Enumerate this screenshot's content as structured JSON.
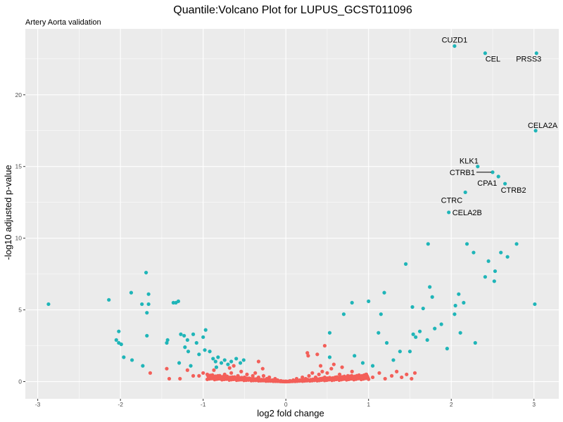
{
  "chart_data": {
    "type": "scatter",
    "title": "Quantile:Volcano Plot for LUPUS_GCST011096",
    "subtitle": "Artery Aorta validation",
    "xlabel": "log2 fold change",
    "ylabel": "-log10 adjusted p-value",
    "xlim": [
      -3.15,
      3.3
    ],
    "ylim": [
      -1.2,
      24.6
    ],
    "x_ticks": [
      -3,
      -2,
      -1,
      0,
      1,
      2,
      3
    ],
    "y_ticks": [
      0,
      5,
      10,
      15,
      20
    ],
    "x_tick_labels": [
      "-3",
      "-2",
      "-1",
      "0",
      "1",
      "2",
      "3"
    ],
    "y_tick_labels": [
      "0",
      "5",
      "10",
      "15",
      "20"
    ],
    "grid": true,
    "legend": "none",
    "colors": {
      "panel": "#ebebeb",
      "grid": "#ffffff",
      "significant": "#1fb5b8",
      "not_significant": "#f35f59"
    },
    "series": [
      {
        "color": "#1fb5b8",
        "points": [
          [
            2.04,
            23.4
          ],
          [
            2.41,
            22.9
          ],
          [
            3.03,
            22.9
          ],
          [
            3.02,
            17.5
          ],
          [
            2.32,
            15.0
          ],
          [
            2.5,
            14.6
          ],
          [
            2.57,
            14.3
          ],
          [
            2.65,
            13.8
          ],
          [
            2.17,
            13.2
          ],
          [
            1.97,
            11.8
          ],
          [
            -2.87,
            5.4
          ],
          [
            -2.14,
            5.7
          ],
          [
            -2.02,
            3.5
          ],
          [
            -2.05,
            2.9
          ],
          [
            -2.02,
            2.7
          ],
          [
            -1.99,
            2.6
          ],
          [
            -1.96,
            1.7
          ],
          [
            -1.87,
            6.2
          ],
          [
            -1.86,
            1.5
          ],
          [
            -1.74,
            5.4
          ],
          [
            -1.69,
            7.6
          ],
          [
            -1.66,
            6.1
          ],
          [
            -1.68,
            4.8
          ],
          [
            -1.68,
            3.2
          ],
          [
            -1.66,
            5.4
          ],
          [
            -1.73,
            1.1
          ],
          [
            -1.43,
            2.9
          ],
          [
            -1.44,
            2.7
          ],
          [
            -1.36,
            5.5
          ],
          [
            -1.33,
            5.5
          ],
          [
            -1.3,
            5.6
          ],
          [
            -1.27,
            3.3
          ],
          [
            -1.23,
            3.2
          ],
          [
            -1.19,
            2.9
          ],
          [
            -1.22,
            2.4
          ],
          [
            -1.18,
            2.1
          ],
          [
            -1.12,
            3.3
          ],
          [
            -1.08,
            2.7
          ],
          [
            -1.05,
            1.9
          ],
          [
            -1.0,
            3.1
          ],
          [
            -0.98,
            2.2
          ],
          [
            -0.92,
            2.1
          ],
          [
            -0.88,
            1.6
          ],
          [
            -0.85,
            1.4
          ],
          [
            -0.82,
            1.7
          ],
          [
            -0.78,
            1.3
          ],
          [
            -0.74,
            1.5
          ],
          [
            -0.7,
            1.2
          ],
          [
            -0.66,
            1.4
          ],
          [
            -0.6,
            1.6
          ],
          [
            -0.55,
            1.3
          ],
          [
            -0.51,
            1.5
          ],
          [
            -0.97,
            3.6
          ],
          [
            -0.84,
            1.0
          ],
          [
            -1.15,
            1.1
          ],
          [
            -1.29,
            1.3
          ],
          [
            0.53,
            3.4
          ],
          [
            0.53,
            1.7
          ],
          [
            0.7,
            4.7
          ],
          [
            0.8,
            5.5
          ],
          [
            0.83,
            1.8
          ],
          [
            0.93,
            1.3
          ],
          [
            1.0,
            5.6
          ],
          [
            1.05,
            1.1
          ],
          [
            1.12,
            3.4
          ],
          [
            1.15,
            4.7
          ],
          [
            1.19,
            6.2
          ],
          [
            1.22,
            2.7
          ],
          [
            1.3,
            1.5
          ],
          [
            1.38,
            2.1
          ],
          [
            1.45,
            8.2
          ],
          [
            1.53,
            5.2
          ],
          [
            1.54,
            3.3
          ],
          [
            1.57,
            3.1
          ],
          [
            1.62,
            3.5
          ],
          [
            1.66,
            5.1
          ],
          [
            1.71,
            2.9
          ],
          [
            1.72,
            9.6
          ],
          [
            1.74,
            6.6
          ],
          [
            1.77,
            5.9
          ],
          [
            1.8,
            3.7
          ],
          [
            1.88,
            4.0
          ],
          [
            1.95,
            2.3
          ],
          [
            2.04,
            4.7
          ],
          [
            2.05,
            5.3
          ],
          [
            2.09,
            6.1
          ],
          [
            2.11,
            3.4
          ],
          [
            2.15,
            5.5
          ],
          [
            2.19,
            9.6
          ],
          [
            2.27,
            9.0
          ],
          [
            2.29,
            2.7
          ],
          [
            2.41,
            7.3
          ],
          [
            2.45,
            8.4
          ],
          [
            2.53,
            7.7
          ],
          [
            2.6,
            9.0
          ],
          [
            2.68,
            8.7
          ],
          [
            2.79,
            9.6
          ],
          [
            2.52,
            7.0
          ],
          [
            3.01,
            5.4
          ],
          [
            1.5,
            2.1
          ]
        ]
      },
      {
        "color": "#f35f59",
        "points": [
          [
            -1.64,
            0.6
          ],
          [
            -1.44,
            0.9
          ],
          [
            -1.41,
            0.2
          ],
          [
            -1.28,
            0.2
          ],
          [
            -1.19,
            0.8
          ],
          [
            -1.12,
            0.4
          ],
          [
            -1.05,
            0.4
          ],
          [
            -1.0,
            0.6
          ],
          [
            -0.95,
            0.5
          ],
          [
            -0.9,
            0.3
          ],
          [
            -0.87,
            0.8
          ],
          [
            -0.82,
            0.4
          ],
          [
            -0.78,
            0.2
          ],
          [
            -0.74,
            0.5
          ],
          [
            -0.7,
            0.3
          ],
          [
            -0.66,
            0.6
          ],
          [
            -0.62,
            0.2
          ],
          [
            -0.58,
            0.4
          ],
          [
            -0.54,
            0.7
          ],
          [
            -0.5,
            0.3
          ],
          [
            -0.47,
            0.5
          ],
          [
            -0.43,
            0.2
          ],
          [
            -0.4,
            0.4
          ],
          [
            -0.37,
            0.6
          ],
          [
            -0.33,
            0.3
          ],
          [
            -0.3,
            0.1
          ],
          [
            -0.27,
            0.4
          ],
          [
            -0.23,
            0.2
          ],
          [
            -0.2,
            0.3
          ],
          [
            -0.16,
            0.1
          ],
          [
            -0.13,
            0.2
          ],
          [
            -0.1,
            0.1
          ],
          [
            -0.06,
            0.05
          ],
          [
            0.0,
            0.02
          ],
          [
            0.05,
            0.05
          ],
          [
            0.09,
            0.1
          ],
          [
            0.13,
            0.2
          ],
          [
            0.17,
            0.1
          ],
          [
            0.2,
            0.3
          ],
          [
            0.24,
            0.2
          ],
          [
            0.28,
            0.4
          ],
          [
            0.32,
            0.6
          ],
          [
            0.36,
            0.3
          ],
          [
            0.4,
            0.5
          ],
          [
            0.44,
            0.7
          ],
          [
            0.47,
            0.3
          ],
          [
            0.5,
            0.6
          ],
          [
            0.55,
            0.9
          ],
          [
            0.6,
            0.3
          ],
          [
            0.65,
            0.5
          ],
          [
            0.7,
            0.2
          ],
          [
            0.75,
            0.4
          ],
          [
            0.8,
            0.7
          ],
          [
            0.85,
            0.3
          ],
          [
            0.91,
            0.2
          ],
          [
            0.97,
            0.5
          ],
          [
            1.05,
            0.3
          ],
          [
            1.13,
            0.6
          ],
          [
            1.2,
            0.2
          ],
          [
            1.28,
            0.4
          ],
          [
            1.34,
            0.7
          ],
          [
            1.4,
            0.3
          ],
          [
            1.46,
            0.5
          ],
          [
            1.52,
            0.2
          ],
          [
            1.56,
            0.6
          ],
          [
            0.26,
            2.0
          ],
          [
            0.27,
            1.8
          ],
          [
            0.38,
            1.9
          ],
          [
            0.47,
            2.5
          ],
          [
            -0.28,
            0.9
          ],
          [
            -0.33,
            1.4
          ],
          [
            -0.63,
            1.1
          ],
          [
            -0.68,
            0.95
          ],
          [
            0.58,
            1.2
          ],
          [
            0.68,
            1.0
          ],
          [
            0.42,
            1.1
          ]
        ]
      }
    ],
    "annotations": [
      {
        "text": "CUZD1",
        "x": 2.04,
        "y": 23.4,
        "anchor": "middle",
        "dx": 0,
        "dy": -5
      },
      {
        "text": "CEL",
        "x": 2.41,
        "y": 22.9,
        "anchor": "middle",
        "dx": 11,
        "dy": 12
      },
      {
        "text": "PRSS3",
        "x": 3.03,
        "y": 22.9,
        "anchor": "middle",
        "dx": -11,
        "dy": 12
      },
      {
        "text": "CELA2A",
        "x": 3.02,
        "y": 17.5,
        "anchor": "middle",
        "dx": 10,
        "dy": -4
      },
      {
        "text": "KLK1",
        "x": 2.32,
        "y": 15.0,
        "anchor": "end",
        "dx": 1,
        "dy": -4
      },
      {
        "text": "CTRB1",
        "x": 2.5,
        "y": 14.6,
        "anchor": "end",
        "dx": -25,
        "dy": 4,
        "leader": true
      },
      {
        "text": "CPA1",
        "x": 2.57,
        "y": 14.3,
        "anchor": "end",
        "dx": -2,
        "dy": 13
      },
      {
        "text": "CTRB2",
        "x": 2.65,
        "y": 13.8,
        "anchor": "middle",
        "dx": 12,
        "dy": 13
      },
      {
        "text": "CTRC",
        "x": 2.17,
        "y": 13.2,
        "anchor": "end",
        "dx": -4,
        "dy": 15
      },
      {
        "text": "CELA2B",
        "x": 1.97,
        "y": 11.8,
        "anchor": "start",
        "dx": 5,
        "dy": 4
      }
    ]
  }
}
